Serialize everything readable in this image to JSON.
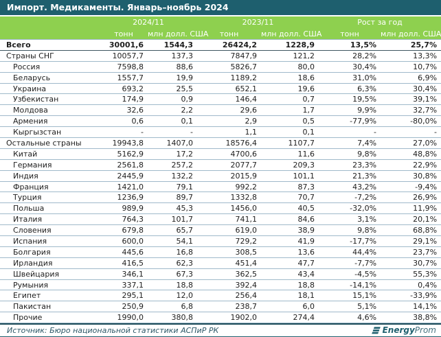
{
  "colors": {
    "title_bar_bg": "#1e5f6e",
    "header_bg": "#8ed04f",
    "row_line": "#9fb9ca",
    "logo_color": "#1e5f6e",
    "source_text": "#2a5565"
  },
  "chart_data": {
    "type": "table",
    "title": "Импорт. Медикаменты. Январь–ноябрь 2024",
    "column_groups": [
      "2024/11",
      "2023/11",
      "Рост за год"
    ],
    "sub_headers": [
      "тонн",
      "млн долл. США",
      "тонн",
      "млн долл. США",
      "тонн",
      "млн долл. США"
    ],
    "rows": [
      {
        "label": "Всего",
        "bold": true,
        "indent": 0,
        "values": [
          "30001,6",
          "1544,3",
          "26424,2",
          "1228,9",
          "13,5%",
          "25,7%"
        ]
      },
      {
        "label": "Страны СНГ",
        "bold": false,
        "indent": 0,
        "values": [
          "10057,7",
          "137,3",
          "7847,9",
          "121,2",
          "28,2%",
          "13,3%"
        ]
      },
      {
        "label": "Россия",
        "bold": false,
        "indent": 1,
        "values": [
          "7598,8",
          "88,6",
          "5826,7",
          "80,0",
          "30,4%",
          "10,7%"
        ]
      },
      {
        "label": "Беларусь",
        "bold": false,
        "indent": 1,
        "values": [
          "1557,7",
          "19,9",
          "1189,2",
          "18,6",
          "31,0%",
          "6,9%"
        ]
      },
      {
        "label": "Украина",
        "bold": false,
        "indent": 1,
        "values": [
          "693,2",
          "25,5",
          "652,1",
          "19,6",
          "6,3%",
          "30,4%"
        ]
      },
      {
        "label": "Узбекистан",
        "bold": false,
        "indent": 1,
        "values": [
          "174,9",
          "0,9",
          "146,4",
          "0,7",
          "19,5%",
          "39,1%"
        ]
      },
      {
        "label": "Молдова",
        "bold": false,
        "indent": 1,
        "values": [
          "32,6",
          "2,2",
          "29,6",
          "1,7",
          "9,9%",
          "32,7%"
        ]
      },
      {
        "label": "Армения",
        "bold": false,
        "indent": 1,
        "values": [
          "0,6",
          "0,1",
          "2,9",
          "0,5",
          "-77,9%",
          "-80,0%"
        ]
      },
      {
        "label": "Кыргызстан",
        "bold": false,
        "indent": 1,
        "values": [
          "-",
          "-",
          "1,1",
          "0,1",
          "-",
          "-"
        ]
      },
      {
        "label": "Остальные страны",
        "bold": false,
        "indent": 0,
        "values": [
          "19943,8",
          "1407,0",
          "18576,4",
          "1107,7",
          "7,4%",
          "27,0%"
        ]
      },
      {
        "label": "Китай",
        "bold": false,
        "indent": 1,
        "values": [
          "5162,9",
          "17,2",
          "4700,6",
          "11,6",
          "9,8%",
          "48,8%"
        ]
      },
      {
        "label": "Германия",
        "bold": false,
        "indent": 1,
        "values": [
          "2561,8",
          "257,2",
          "2077,7",
          "209,3",
          "23,3%",
          "22,9%"
        ]
      },
      {
        "label": "Индия",
        "bold": false,
        "indent": 1,
        "values": [
          "2445,9",
          "132,2",
          "2015,9",
          "101,1",
          "21,3%",
          "30,8%"
        ]
      },
      {
        "label": "Франция",
        "bold": false,
        "indent": 1,
        "values": [
          "1421,0",
          "79,1",
          "992,2",
          "87,3",
          "43,2%",
          "-9,4%"
        ]
      },
      {
        "label": "Турция",
        "bold": false,
        "indent": 1,
        "values": [
          "1236,9",
          "89,7",
          "1332,8",
          "70,7",
          "-7,2%",
          "26,9%"
        ]
      },
      {
        "label": "Польша",
        "bold": false,
        "indent": 1,
        "values": [
          "989,9",
          "45,3",
          "1456,0",
          "40,5",
          "-32,0%",
          "11,9%"
        ]
      },
      {
        "label": "Италия",
        "bold": false,
        "indent": 1,
        "values": [
          "764,3",
          "101,7",
          "741,1",
          "84,6",
          "3,1%",
          "20,1%"
        ]
      },
      {
        "label": "Словения",
        "bold": false,
        "indent": 1,
        "values": [
          "679,8",
          "65,7",
          "619,0",
          "38,9",
          "9,8%",
          "68,8%"
        ]
      },
      {
        "label": "Испания",
        "bold": false,
        "indent": 1,
        "values": [
          "600,0",
          "54,1",
          "729,2",
          "41,9",
          "-17,7%",
          "29,1%"
        ]
      },
      {
        "label": "Болгария",
        "bold": false,
        "indent": 1,
        "values": [
          "445,6",
          "16,8",
          "308,5",
          "13,6",
          "44,4%",
          "23,7%"
        ]
      },
      {
        "label": "Ирландия",
        "bold": false,
        "indent": 1,
        "values": [
          "416,5",
          "62,3",
          "451,4",
          "47,7",
          "-7,7%",
          "30,7%"
        ]
      },
      {
        "label": "Швейцария",
        "bold": false,
        "indent": 1,
        "values": [
          "346,1",
          "67,3",
          "362,5",
          "43,4",
          "-4,5%",
          "55,3%"
        ]
      },
      {
        "label": "Румыния",
        "bold": false,
        "indent": 1,
        "values": [
          "337,1",
          "18,8",
          "392,4",
          "18,8",
          "-14,1%",
          "0,4%"
        ]
      },
      {
        "label": "Египет",
        "bold": false,
        "indent": 1,
        "values": [
          "295,1",
          "12,0",
          "256,4",
          "18,1",
          "15,1%",
          "-33,9%"
        ]
      },
      {
        "label": "Пакистан",
        "bold": false,
        "indent": 1,
        "values": [
          "250,9",
          "6,8",
          "238,7",
          "6,0",
          "5,1%",
          "14,1%"
        ]
      },
      {
        "label": "Прочие",
        "bold": false,
        "indent": 1,
        "values": [
          "1990,0",
          "380,8",
          "1902,0",
          "274,4",
          "4,6%",
          "38,8%"
        ]
      }
    ]
  },
  "footer": {
    "source": "Источник: Бюро национальной статистики АСПиР РК",
    "logo_bold": "Energy",
    "logo_light": "Prom"
  }
}
